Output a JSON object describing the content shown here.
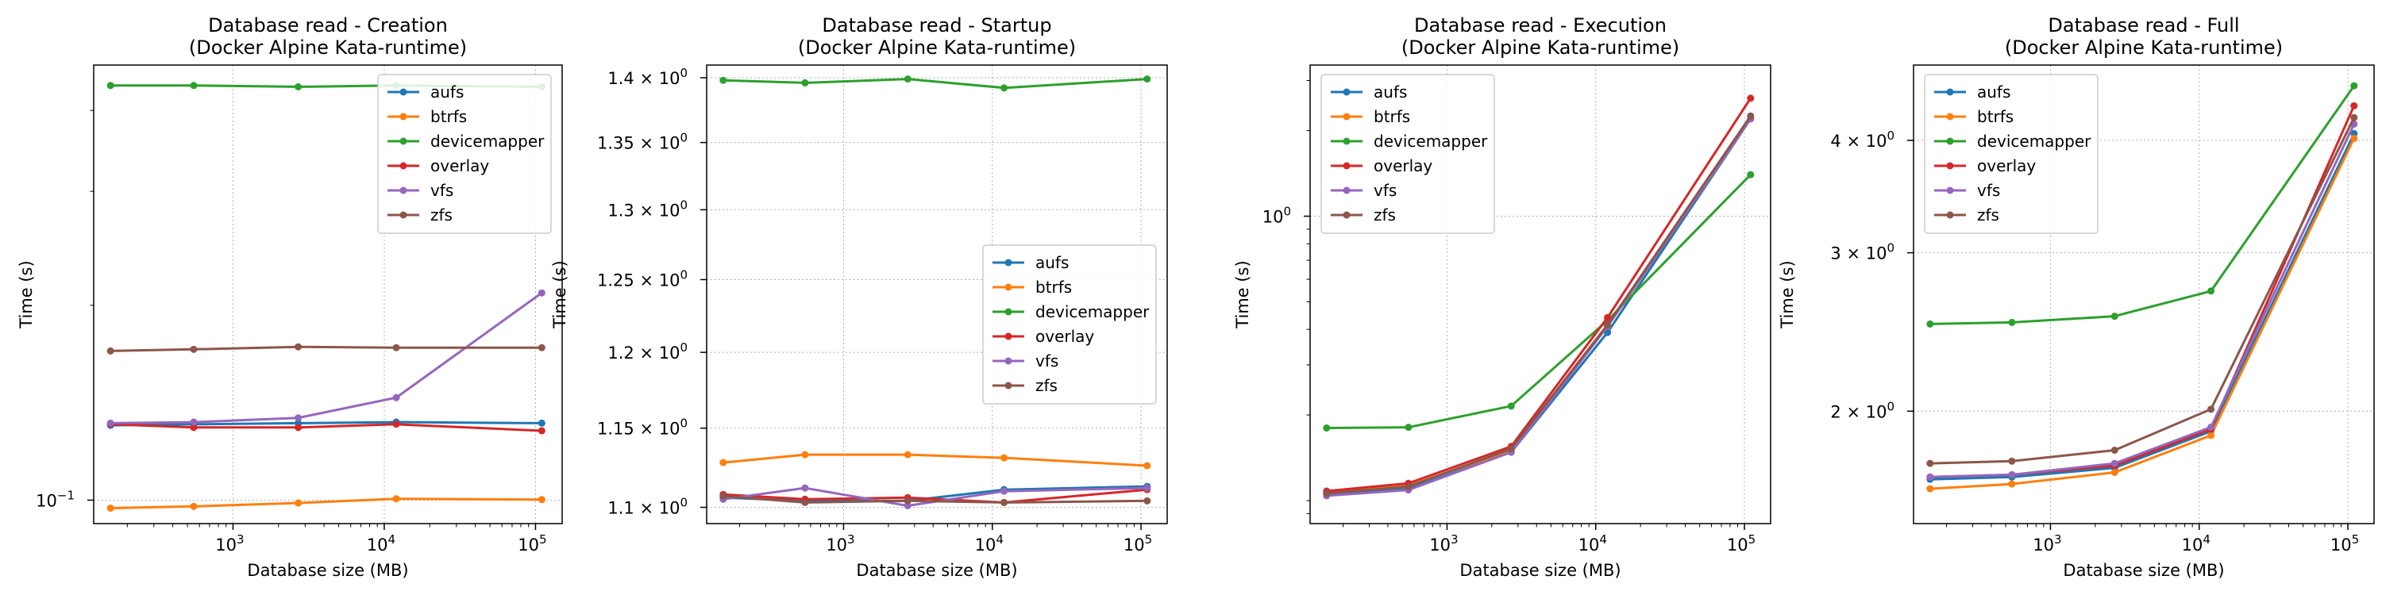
{
  "colors": {
    "aufs": "#1f77b4",
    "btrfs": "#ff7f0e",
    "devicemapper": "#2ca02c",
    "overlay": "#d62728",
    "vfs": "#9467bd",
    "zfs": "#8c564b"
  },
  "chart_data": [
    {
      "type": "line",
      "title": "Database read - Creation",
      "subtitle": "(Docker Alpine Kata-runtime)",
      "xlabel": "Database size (MB)",
      "ylabel": "Time (s)",
      "xscale": "log",
      "yscale": "log",
      "xlim": [
        120,
        150000
      ],
      "ylim": [
        0.092,
        0.47
      ],
      "grid": true,
      "legend_position": "upper right",
      "x": [
        155,
        550,
        2700,
        12000,
        110000
      ],
      "xticks": [
        {
          "value": 1000,
          "label": "10",
          "exp": "3"
        },
        {
          "value": 10000,
          "label": "10",
          "exp": "4"
        },
        {
          "value": 100000,
          "label": "10",
          "exp": "5"
        }
      ],
      "yticks": [
        {
          "value": 0.1,
          "label": "10",
          "exp": "−1"
        }
      ],
      "series": [
        {
          "name": "aufs",
          "values": [
            0.1305,
            0.131,
            0.1315,
            0.132,
            0.1315
          ]
        },
        {
          "name": "btrfs",
          "values": [
            0.0972,
            0.0978,
            0.099,
            0.1005,
            0.1002
          ]
        },
        {
          "name": "devicemapper",
          "values": [
            0.437,
            0.437,
            0.435,
            0.437,
            0.435
          ]
        },
        {
          "name": "overlay",
          "values": [
            0.131,
            0.1295,
            0.1295,
            0.131,
            0.128
          ]
        },
        {
          "name": "vfs",
          "values": [
            0.1315,
            0.132,
            0.134,
            0.144,
            0.209
          ]
        },
        {
          "name": "zfs",
          "values": [
            0.17,
            0.171,
            0.1725,
            0.172,
            0.172
          ]
        }
      ]
    },
    {
      "type": "line",
      "title": "Database read - Startup",
      "subtitle": "(Docker Alpine Kata-runtime)",
      "xlabel": "Database size (MB)",
      "ylabel": "Time (s)",
      "xscale": "log",
      "yscale": "log",
      "xlim": [
        120,
        150000
      ],
      "ylim": [
        1.09,
        1.41
      ],
      "grid": true,
      "legend_position": "center right",
      "x": [
        155,
        550,
        2700,
        12000,
        110000
      ],
      "xticks": [
        {
          "value": 1000,
          "label": "10",
          "exp": "3"
        },
        {
          "value": 10000,
          "label": "10",
          "exp": "4"
        },
        {
          "value": 100000,
          "label": "10",
          "exp": "5"
        }
      ],
      "yticks": [
        {
          "value": 1.1,
          "label": "1.1 × 10",
          "exp": "0"
        },
        {
          "value": 1.15,
          "label": "1.15 × 10",
          "exp": "0"
        },
        {
          "value": 1.2,
          "label": "1.2 × 10",
          "exp": "0"
        },
        {
          "value": 1.25,
          "label": "1.25 × 10",
          "exp": "0"
        },
        {
          "value": 1.3,
          "label": "1.3 × 10",
          "exp": "0"
        },
        {
          "value": 1.35,
          "label": "1.35 × 10",
          "exp": "0"
        },
        {
          "value": 1.4,
          "label": "1.4 × 10",
          "exp": "0"
        }
      ],
      "series": [
        {
          "name": "aufs",
          "values": [
            1.106,
            1.104,
            1.104,
            1.111,
            1.113
          ]
        },
        {
          "name": "btrfs",
          "values": [
            1.128,
            1.133,
            1.133,
            1.131,
            1.126
          ]
        },
        {
          "name": "devicemapper",
          "values": [
            1.398,
            1.396,
            1.399,
            1.392,
            1.399
          ]
        },
        {
          "name": "overlay",
          "values": [
            1.108,
            1.105,
            1.106,
            1.103,
            1.111
          ]
        },
        {
          "name": "vfs",
          "values": [
            1.105,
            1.112,
            1.101,
            1.11,
            1.112
          ]
        },
        {
          "name": "zfs",
          "values": [
            1.107,
            1.103,
            1.104,
            1.103,
            1.104
          ]
        }
      ]
    },
    {
      "type": "line",
      "title": "Database read - Execution",
      "subtitle": "(Docker Alpine Kata-runtime)",
      "xlabel": "Database size (MB)",
      "ylabel": "Time (s)",
      "xscale": "log",
      "yscale": "log",
      "xlim": [
        120,
        150000
      ],
      "ylim": [
        0.083,
        3.4
      ],
      "grid": true,
      "legend_position": "upper left",
      "x": [
        155,
        550,
        2700,
        12000,
        110000
      ],
      "xticks": [
        {
          "value": 1000,
          "label": "10",
          "exp": "3"
        },
        {
          "value": 10000,
          "label": "10",
          "exp": "4"
        },
        {
          "value": 100000,
          "label": "10",
          "exp": "5"
        }
      ],
      "yticks": [
        {
          "value": 1,
          "label": "10",
          "exp": "0"
        }
      ],
      "series": [
        {
          "name": "aufs",
          "values": [
            0.105,
            0.11,
            0.148,
            0.39,
            2.2
          ]
        },
        {
          "name": "btrfs",
          "values": [
            0.107,
            0.113,
            0.15,
            0.41,
            2.2
          ]
        },
        {
          "name": "devicemapper",
          "values": [
            0.18,
            0.181,
            0.215,
            0.43,
            1.4
          ]
        },
        {
          "name": "overlay",
          "values": [
            0.108,
            0.115,
            0.155,
            0.44,
            2.6
          ]
        },
        {
          "name": "vfs",
          "values": [
            0.104,
            0.109,
            0.148,
            0.41,
            2.2
          ]
        },
        {
          "name": "zfs",
          "values": [
            0.106,
            0.112,
            0.152,
            0.415,
            2.25
          ]
        }
      ]
    },
    {
      "type": "line",
      "title": "Database read - Full",
      "subtitle": "(Docker Alpine Kata-runtime)",
      "xlabel": "Database size (MB)",
      "ylabel": "Time (s)",
      "xscale": "log",
      "yscale": "log",
      "xlim": [
        120,
        150000
      ],
      "ylim": [
        1.5,
        4.85
      ],
      "grid": true,
      "legend_position": "upper left",
      "x": [
        155,
        550,
        2700,
        12000,
        110000
      ],
      "xticks": [
        {
          "value": 1000,
          "label": "10",
          "exp": "3"
        },
        {
          "value": 10000,
          "label": "10",
          "exp": "4"
        },
        {
          "value": 100000,
          "label": "10",
          "exp": "5"
        }
      ],
      "yticks": [
        {
          "value": 2,
          "label": "2 × 10",
          "exp": "0"
        },
        {
          "value": 3,
          "label": "3 × 10",
          "exp": "0"
        },
        {
          "value": 4,
          "label": "4 × 10",
          "exp": "0"
        }
      ],
      "series": [
        {
          "name": "aufs",
          "values": [
            1.68,
            1.69,
            1.73,
            1.9,
            4.07
          ]
        },
        {
          "name": "btrfs",
          "values": [
            1.64,
            1.66,
            1.71,
            1.88,
            4.02
          ]
        },
        {
          "name": "devicemapper",
          "values": [
            2.5,
            2.51,
            2.55,
            2.72,
            4.6
          ]
        },
        {
          "name": "overlay",
          "values": [
            1.69,
            1.7,
            1.74,
            1.91,
            4.37
          ]
        },
        {
          "name": "vfs",
          "values": [
            1.69,
            1.7,
            1.75,
            1.92,
            4.17
          ]
        },
        {
          "name": "zfs",
          "values": [
            1.75,
            1.76,
            1.81,
            2.01,
            4.24
          ]
        }
      ]
    }
  ]
}
